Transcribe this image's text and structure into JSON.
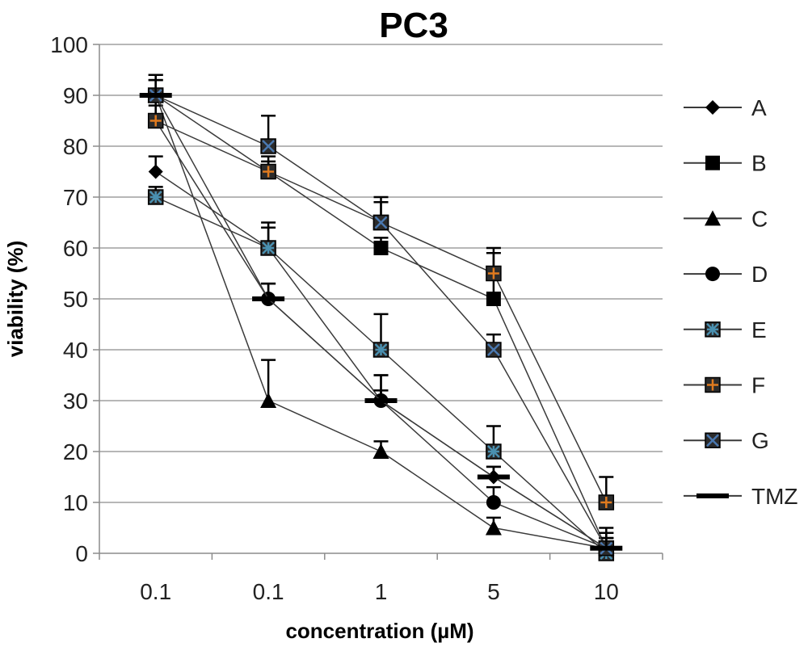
{
  "chart_data": {
    "type": "line",
    "title": "PC3",
    "xlabel": "concentration (µM)",
    "ylabel": "viability (%)",
    "categories": [
      "0.1",
      "0.1",
      "1",
      "5",
      "10"
    ],
    "ylim": [
      0,
      100
    ],
    "yticks": [
      "0",
      "10",
      "20",
      "30",
      "40",
      "50",
      "60",
      "70",
      "80",
      "90",
      "100"
    ],
    "grid": true,
    "legend_position": "right",
    "series": [
      {
        "name": "A",
        "marker": "diamond",
        "color": "#000000",
        "values": [
          75,
          60,
          30,
          15,
          1
        ],
        "error": [
          3,
          4,
          5,
          2,
          2
        ]
      },
      {
        "name": "B",
        "marker": "square",
        "color": "#000000",
        "values": [
          90,
          75,
          60,
          50,
          1
        ],
        "error": [
          4,
          3,
          2,
          9,
          3
        ]
      },
      {
        "name": "C",
        "marker": "triangle",
        "color": "#000000",
        "values": [
          90,
          30,
          20,
          5,
          1
        ],
        "error": [
          4,
          8,
          2,
          2,
          2
        ]
      },
      {
        "name": "D",
        "marker": "circle",
        "color": "#000000",
        "values": [
          85,
          50,
          30,
          10,
          1
        ],
        "error": [
          4,
          3,
          2,
          3,
          2
        ]
      },
      {
        "name": "E",
        "marker": "asterisk-square",
        "color": "#4a90b0",
        "values": [
          70,
          60,
          40,
          20,
          0
        ],
        "error": [
          2,
          5,
          7,
          5,
          2
        ]
      },
      {
        "name": "F",
        "marker": "plus-square",
        "color": "#e07b1f",
        "values": [
          85,
          75,
          65,
          55,
          10
        ],
        "error": [
          3,
          2,
          4,
          5,
          5
        ]
      },
      {
        "name": "G",
        "marker": "x-square",
        "color": "#4a78b0",
        "values": [
          90,
          80,
          65,
          40,
          1
        ],
        "error": [
          3,
          6,
          5,
          3,
          3
        ]
      },
      {
        "name": "TMZ",
        "marker": "dash",
        "color": "#000000",
        "values": [
          90,
          50,
          30,
          15,
          1
        ],
        "error": [
          3,
          3,
          5,
          2,
          4
        ]
      }
    ]
  }
}
